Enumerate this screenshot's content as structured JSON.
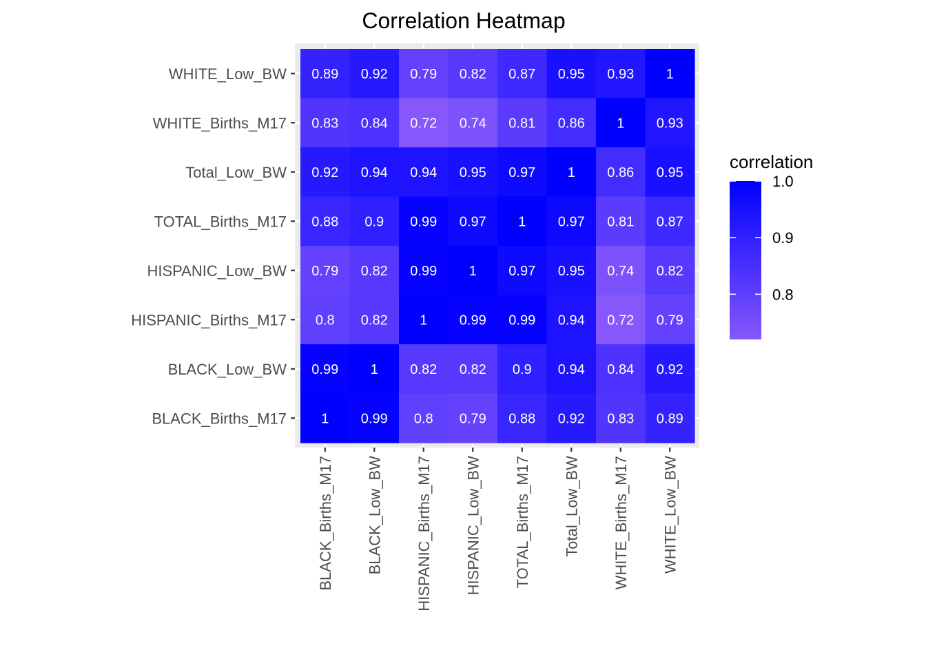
{
  "chart_data": {
    "type": "heatmap",
    "title": "Correlation Heatmap",
    "xlabel": "",
    "ylabel": "",
    "x_categories": [
      "BLACK_Births_M17",
      "BLACK_Low_BW",
      "HISPANIC_Births_M17",
      "HISPANIC_Low_BW",
      "TOTAL_Births_M17",
      "Total_Low_BW",
      "WHITE_Births_M17",
      "WHITE_Low_BW"
    ],
    "y_categories": [
      "WHITE_Low_BW",
      "WHITE_Births_M17",
      "Total_Low_BW",
      "TOTAL_Births_M17",
      "HISPANIC_Low_BW",
      "HISPANIC_Births_M17",
      "BLACK_Low_BW",
      "BLACK_Births_M17"
    ],
    "values": [
      [
        0.89,
        0.92,
        0.79,
        0.82,
        0.87,
        0.95,
        0.93,
        1
      ],
      [
        0.83,
        0.84,
        0.72,
        0.74,
        0.81,
        0.86,
        1,
        0.93
      ],
      [
        0.92,
        0.94,
        0.94,
        0.95,
        0.97,
        1,
        0.86,
        0.95
      ],
      [
        0.88,
        0.9,
        0.99,
        0.97,
        1,
        0.97,
        0.81,
        0.87
      ],
      [
        0.79,
        0.82,
        0.99,
        1,
        0.97,
        0.95,
        0.74,
        0.82
      ],
      [
        0.8,
        0.82,
        1,
        0.99,
        0.99,
        0.94,
        0.72,
        0.79
      ],
      [
        0.99,
        1,
        0.82,
        0.82,
        0.9,
        0.94,
        0.84,
        0.92
      ],
      [
        1,
        0.99,
        0.8,
        0.79,
        0.88,
        0.92,
        0.83,
        0.89
      ]
    ],
    "legend": {
      "title": "correlation",
      "position": "right",
      "ticks": [
        1.0,
        0.9,
        0.8
      ],
      "tick_labels": [
        "1.0",
        "0.9",
        "0.8"
      ],
      "min": 0.72,
      "max": 1.0
    },
    "colors": {
      "high": "#0000ff",
      "low": "#8658fc",
      "panel_background": "#ebebeb",
      "grid": "#ffffff",
      "cell_text": "#ffffff",
      "axis_text": "#4d4d4d"
    }
  }
}
